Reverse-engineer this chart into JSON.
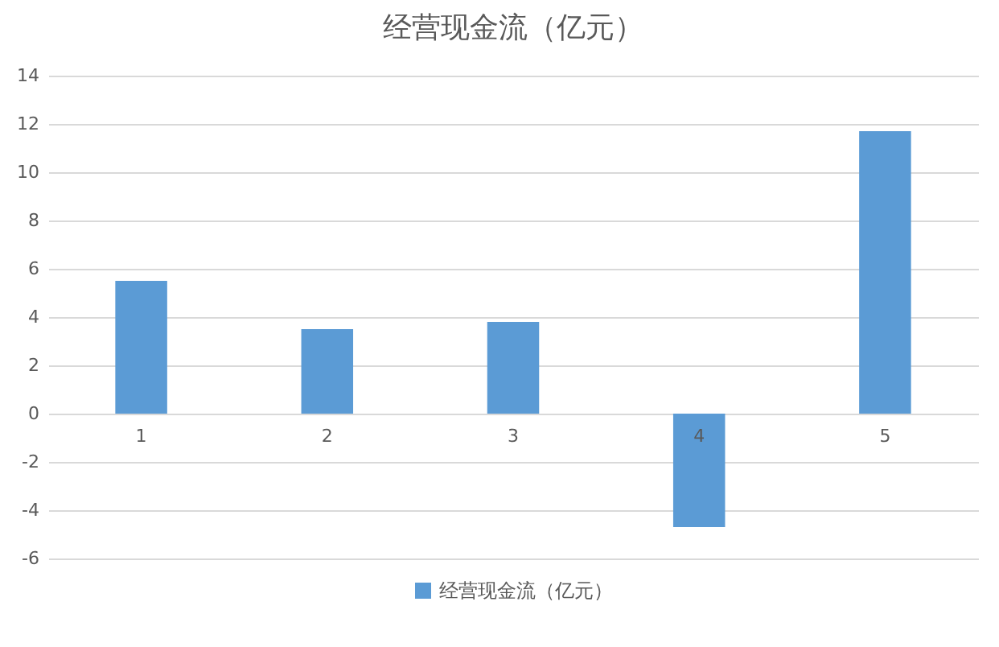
{
  "chart_data": {
    "type": "bar",
    "title": "经营现金流（亿元）",
    "categories": [
      "1",
      "2",
      "3",
      "4",
      "5"
    ],
    "series": [
      {
        "name": "经营现金流（亿元）",
        "color": "#5b9bd5",
        "values": [
          5.5,
          3.5,
          3.8,
          -4.7,
          11.7
        ]
      }
    ],
    "ylim": [
      -6,
      14
    ],
    "yticks": [
      -6,
      -4,
      -2,
      0,
      2,
      4,
      6,
      8,
      10,
      12,
      14
    ],
    "grid": "y",
    "legend": "bottom"
  }
}
